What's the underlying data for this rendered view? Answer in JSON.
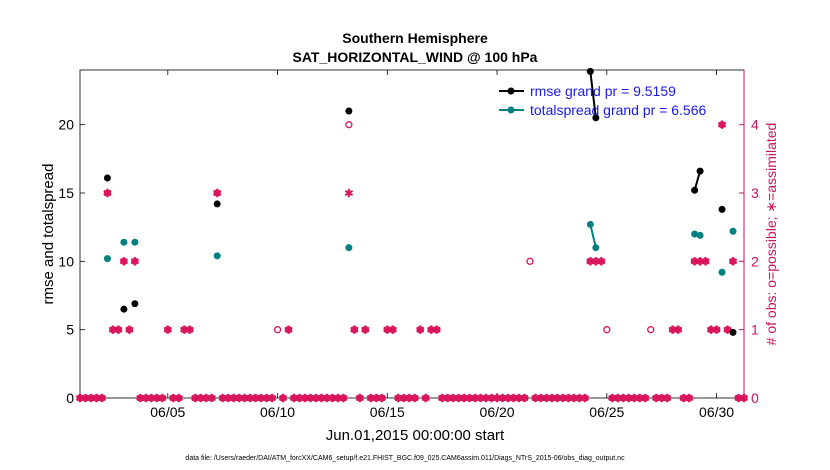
{
  "chart_data": {
    "type": "scatter",
    "title": "Southern Hemisphere",
    "subtitle": "SAT_HORIZONTAL_WIND @ 100 hPa",
    "xlabel": "Jun.01,2015 00:00:00 start",
    "ylabel_left": "rmse and totalspread",
    "ylabel_right": "# of obs: o=possible; ∗=assimilated",
    "footnote": "data file: /Users/raeder/DAI/ATM_forcXX/CAM6_setup/f.e21.FHIST_BGC.f09_025.CAM6assim.011/Diags_NTrS_2015-06/obs_diag_output.nc",
    "xlim": [
      1,
      31.25
    ],
    "ylim_left": [
      0,
      24
    ],
    "ylim_right": [
      0,
      4.8
    ],
    "x_ticks": [
      {
        "value": 5,
        "label": "06/05"
      },
      {
        "value": 10,
        "label": "06/10"
      },
      {
        "value": 15,
        "label": "06/15"
      },
      {
        "value": 20,
        "label": "06/20"
      },
      {
        "value": 25,
        "label": "06/25"
      },
      {
        "value": 30,
        "label": "06/30"
      }
    ],
    "y_ticks_left": [
      "0",
      "5",
      "10",
      "15",
      "20"
    ],
    "y_ticks_right": [
      "0",
      "1",
      "2",
      "3",
      "4"
    ],
    "colors": {
      "rmse": "#000000",
      "spread": "#008080",
      "obs": "#d9145a",
      "legend_text": "#1a1ae6",
      "axis_right": "#c8145a"
    },
    "legend": [
      {
        "name": "rmse",
        "label": "rmse grand pr = 9.5159"
      },
      {
        "name": "totalspread",
        "label": "totalspread grand pr = 6.566"
      }
    ],
    "series": [
      {
        "name": "rmse",
        "axis": "left",
        "segments": [
          [
            [
              2.25,
              16.1
            ]
          ],
          [
            [
              3.0,
              6.5
            ]
          ],
          [
            [
              3.5,
              6.9
            ]
          ],
          [
            [
              7.25,
              14.2
            ]
          ],
          [
            [
              13.25,
              21.0
            ]
          ],
          [
            [
              24.25,
              23.9
            ],
            [
              24.5,
              20.5
            ]
          ],
          [
            [
              29.0,
              15.2
            ],
            [
              29.25,
              16.6
            ]
          ],
          [
            [
              30.25,
              13.8
            ]
          ],
          [
            [
              30.75,
              4.8
            ]
          ]
        ]
      },
      {
        "name": "totalspread",
        "axis": "left",
        "segments": [
          [
            [
              2.25,
              10.2
            ]
          ],
          [
            [
              3.0,
              11.4
            ]
          ],
          [
            [
              3.5,
              11.4
            ]
          ],
          [
            [
              7.25,
              10.4
            ]
          ],
          [
            [
              13.25,
              11.0
            ]
          ],
          [
            [
              24.25,
              12.7
            ],
            [
              24.5,
              11.0
            ]
          ],
          [
            [
              29.0,
              12.0
            ],
            [
              29.25,
              11.9
            ]
          ],
          [
            [
              30.25,
              9.2
            ]
          ],
          [
            [
              30.75,
              12.2
            ]
          ]
        ]
      }
    ],
    "obs_possible": [
      {
        "x": 2.25,
        "y": 3
      },
      {
        "x": 2.5,
        "y": 1
      },
      {
        "x": 2.75,
        "y": 1
      },
      {
        "x": 3.0,
        "y": 2
      },
      {
        "x": 3.25,
        "y": 1
      },
      {
        "x": 3.5,
        "y": 2
      },
      {
        "x": 5.0,
        "y": 1
      },
      {
        "x": 5.75,
        "y": 1
      },
      {
        "x": 6.0,
        "y": 1
      },
      {
        "x": 7.25,
        "y": 3
      },
      {
        "x": 10.0,
        "y": 1
      },
      {
        "x": 10.5,
        "y": 1
      },
      {
        "x": 13.25,
        "y": 4
      },
      {
        "x": 13.5,
        "y": 1
      },
      {
        "x": 14.0,
        "y": 1
      },
      {
        "x": 15.0,
        "y": 1
      },
      {
        "x": 15.25,
        "y": 1
      },
      {
        "x": 16.5,
        "y": 1
      },
      {
        "x": 17.0,
        "y": 1
      },
      {
        "x": 17.25,
        "y": 1
      },
      {
        "x": 21.5,
        "y": 2
      },
      {
        "x": 24.25,
        "y": 2
      },
      {
        "x": 24.5,
        "y": 2
      },
      {
        "x": 24.75,
        "y": 2
      },
      {
        "x": 25.0,
        "y": 1
      },
      {
        "x": 27.0,
        "y": 1
      },
      {
        "x": 28.0,
        "y": 1
      },
      {
        "x": 28.25,
        "y": 1
      },
      {
        "x": 29.0,
        "y": 2
      },
      {
        "x": 29.25,
        "y": 2
      },
      {
        "x": 29.5,
        "y": 2
      },
      {
        "x": 29.75,
        "y": 1
      },
      {
        "x": 30.0,
        "y": 1
      },
      {
        "x": 30.25,
        "y": 4
      },
      {
        "x": 30.5,
        "y": 1
      },
      {
        "x": 30.75,
        "y": 2
      }
    ],
    "obs_assimilated": [
      {
        "x": 2.25,
        "y": 3
      },
      {
        "x": 2.5,
        "y": 1
      },
      {
        "x": 2.75,
        "y": 1
      },
      {
        "x": 3.0,
        "y": 2
      },
      {
        "x": 3.25,
        "y": 1
      },
      {
        "x": 3.5,
        "y": 2
      },
      {
        "x": 5.0,
        "y": 1
      },
      {
        "x": 5.75,
        "y": 1
      },
      {
        "x": 6.0,
        "y": 1
      },
      {
        "x": 7.25,
        "y": 3
      },
      {
        "x": 10.5,
        "y": 1
      },
      {
        "x": 13.25,
        "y": 3
      },
      {
        "x": 13.5,
        "y": 1
      },
      {
        "x": 14.0,
        "y": 1
      },
      {
        "x": 15.0,
        "y": 1
      },
      {
        "x": 15.25,
        "y": 1
      },
      {
        "x": 16.5,
        "y": 1
      },
      {
        "x": 17.0,
        "y": 1
      },
      {
        "x": 17.25,
        "y": 1
      },
      {
        "x": 24.25,
        "y": 2
      },
      {
        "x": 24.5,
        "y": 2
      },
      {
        "x": 24.75,
        "y": 2
      },
      {
        "x": 28.0,
        "y": 1
      },
      {
        "x": 28.25,
        "y": 1
      },
      {
        "x": 29.0,
        "y": 2
      },
      {
        "x": 29.25,
        "y": 2
      },
      {
        "x": 29.5,
        "y": 2
      },
      {
        "x": 29.75,
        "y": 1
      },
      {
        "x": 30.0,
        "y": 1
      },
      {
        "x": 30.25,
        "y": 4
      },
      {
        "x": 30.5,
        "y": 1
      },
      {
        "x": 30.75,
        "y": 2
      }
    ],
    "obs_zero_step_days": 0.25
  }
}
